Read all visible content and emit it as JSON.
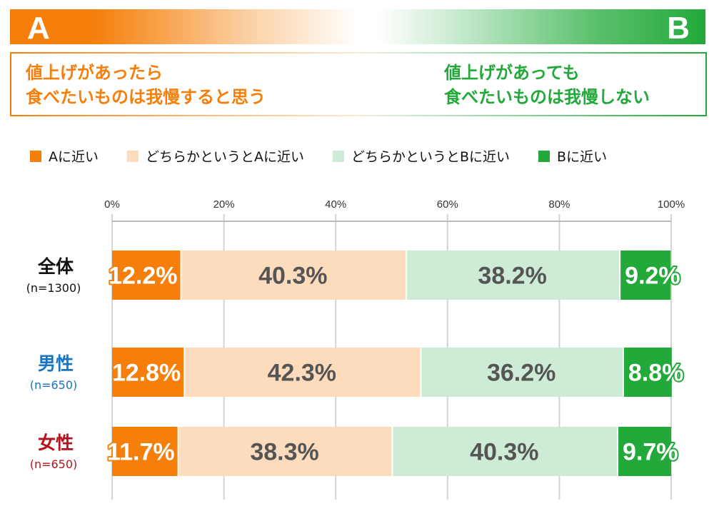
{
  "header": {
    "a_label": "A",
    "b_label": "B",
    "a_text": [
      "値上げがあったら",
      "食べたいものは我慢すると思う"
    ],
    "b_text": [
      "値上げがあっても",
      "食べたいものは我慢しない"
    ]
  },
  "colors": {
    "a": "#f57f0a",
    "a_light": "#fddcbd",
    "b_light": "#cdebd5",
    "b": "#22a93a",
    "value_text": "#555555"
  },
  "chart_data": {
    "type": "bar",
    "orientation": "horizontal",
    "stacked": true,
    "xlim": [
      0,
      100
    ],
    "ticks": [
      "0%",
      "20%",
      "40%",
      "60%",
      "80%",
      "100%"
    ],
    "grid": true,
    "legend_position": "top",
    "series": [
      {
        "name": "Aに近い",
        "values": [
          12.2,
          12.8,
          11.7
        ]
      },
      {
        "name": "どちらかというとAに近い",
        "values": [
          40.3,
          42.3,
          38.3
        ]
      },
      {
        "name": "どちらかというとBに近い",
        "values": [
          38.2,
          36.2,
          40.3
        ]
      },
      {
        "name": "Bに近い",
        "values": [
          9.2,
          8.8,
          9.7
        ]
      }
    ],
    "categories": [
      {
        "label": "全体",
        "n": "(n=1300)",
        "color": "#111111"
      },
      {
        "label": "男性",
        "n": "(n=650)",
        "color": "#1a74c4"
      },
      {
        "label": "女性",
        "n": "(n=650)",
        "color": "#b5121b"
      }
    ]
  }
}
